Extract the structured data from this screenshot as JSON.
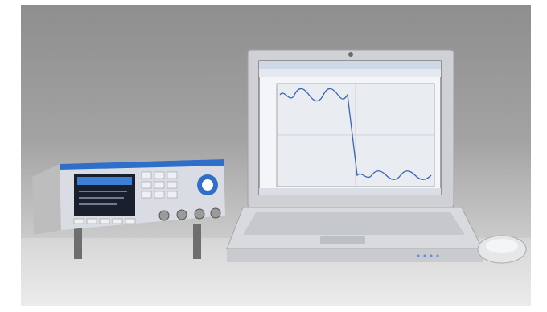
{
  "scene": {
    "background_color": "#9c9c9c",
    "instrument_accent": "#2f6fc9",
    "laptop_shell": "#d2d2d2",
    "screen_waveform_color": "#3a63b8"
  }
}
